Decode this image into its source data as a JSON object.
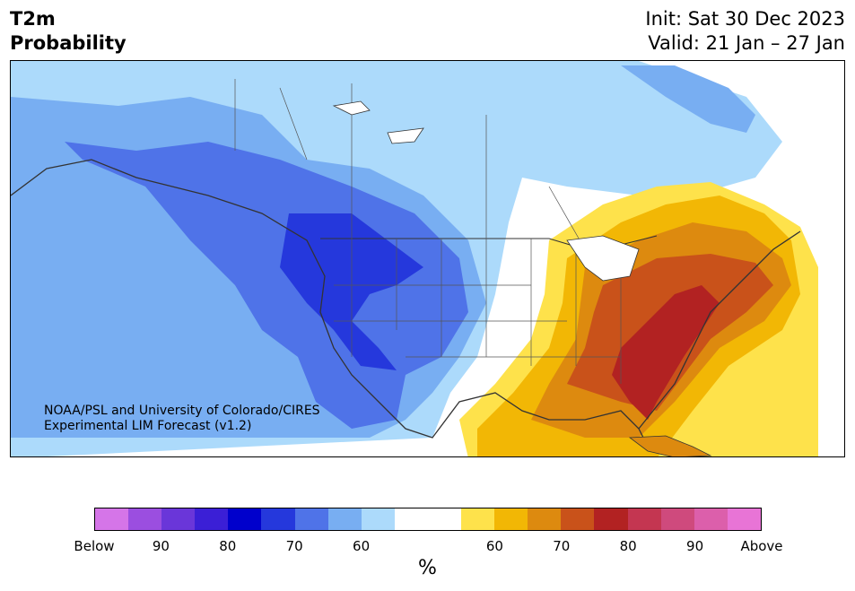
{
  "header": {
    "title_line1": "T2m",
    "title_line2": "Probability",
    "init": "Init: Sat 30 Dec 2023",
    "valid": "Valid: 21 Jan – 27 Jan"
  },
  "credit": {
    "line1": "NOAA/PSL and University of Colorado/CIRES",
    "line2": "Experimental LIM Forecast (v1.2)"
  },
  "colorbar": {
    "colors": [
      "#d575e8",
      "#9b4ee0",
      "#6a36d9",
      "#3b1fd6",
      "#0000cc",
      "#2538dc",
      "#4f73e8",
      "#78aef2",
      "#acdafb",
      "#ffffff",
      "#ffffff",
      "#fee24b",
      "#f2b705",
      "#dd8a0f",
      "#c9521a",
      "#b22222",
      "#c43651",
      "#cf4a7d",
      "#dc5fab",
      "#e874d6"
    ],
    "labels": [
      "Below",
      "90",
      "80",
      "70",
      "60",
      "60",
      "70",
      "80",
      "90",
      "Above"
    ],
    "units": "%"
  },
  "map": {
    "colors": {
      "below_60": "#acdafb",
      "below_70": "#78aef2",
      "below_80": "#4f73e8",
      "below_90": "#2538dc",
      "above_60": "#fee24b",
      "above_70": "#f2b705",
      "above_80": "#dd8a0f",
      "above_90": "#c9521a",
      "above_95": "#b22222",
      "outline": "#333333"
    }
  }
}
